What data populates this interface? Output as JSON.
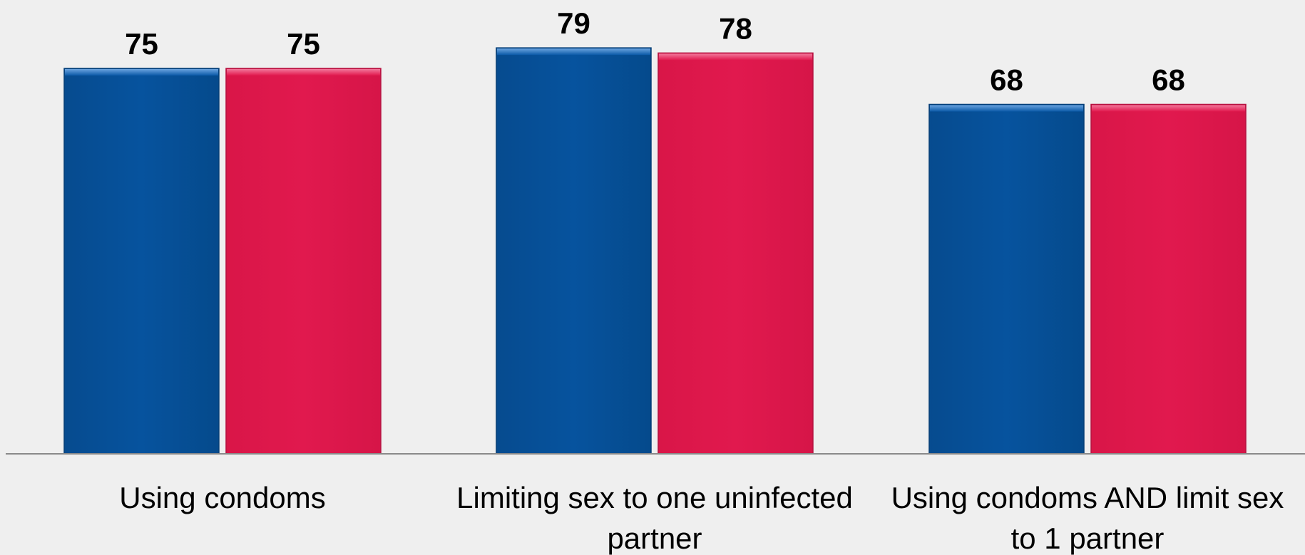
{
  "chart_data": {
    "type": "bar",
    "categories": [
      "Using condoms",
      "Limiting sex to one uninfected partner",
      "Using condoms AND limit sex to 1 partner"
    ],
    "category_label_lines": [
      [
        "Using condoms"
      ],
      [
        "Limiting sex to one uninfected",
        "partner"
      ],
      [
        "Using condoms AND limit sex",
        "to 1 partner"
      ]
    ],
    "series": [
      {
        "values": [
          75,
          79,
          68
        ],
        "color": "#06519b"
      },
      {
        "values": [
          75,
          78,
          68
        ],
        "color": "#e0184d"
      }
    ],
    "title": "",
    "xlabel": "",
    "ylabel": "",
    "ylim": [
      0,
      80
    ],
    "grid": false,
    "legend": "none",
    "data_labels": true,
    "colors": {
      "background": "#efefef",
      "axis": "#8a8a8a",
      "text": "#000000"
    }
  }
}
